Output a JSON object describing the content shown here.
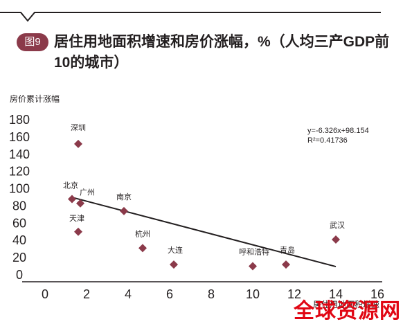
{
  "header": {
    "badge": "图9",
    "title": "居住用地面积增速和房价涨幅，%（人均三产GDP前10的城市）"
  },
  "watermark": "全球资源网",
  "chart_data": {
    "type": "scatter",
    "title": "居住用地面积增速和房价涨幅，%（人均三产GDP前10的城市）",
    "ylabel": "房价累计涨幅",
    "xlabel": "居住用地面积增速",
    "xlim": [
      0,
      16
    ],
    "ylim": [
      0,
      180
    ],
    "xticks": [
      0,
      2,
      4,
      6,
      8,
      10,
      12,
      14,
      16
    ],
    "yticks": [
      0,
      20,
      40,
      60,
      80,
      100,
      120,
      140,
      160,
      180
    ],
    "grid": false,
    "points": [
      {
        "label": "深圳",
        "x": 1.6,
        "y": 152
      },
      {
        "label": "北京",
        "x": 1.3,
        "y": 88
      },
      {
        "label": "广州",
        "x": 1.7,
        "y": 83
      },
      {
        "label": "南京",
        "x": 3.8,
        "y": 74
      },
      {
        "label": "天津",
        "x": 1.6,
        "y": 50
      },
      {
        "label": "杭州",
        "x": 4.7,
        "y": 31
      },
      {
        "label": "大连",
        "x": 6.2,
        "y": 12
      },
      {
        "label": "呼和浩特",
        "x": 10.0,
        "y": 10
      },
      {
        "label": "青岛",
        "x": 11.6,
        "y": 12
      },
      {
        "label": "武汉",
        "x": 14.0,
        "y": 41
      }
    ],
    "trendline": {
      "slope": -6.326,
      "intercept": 98.154,
      "x_start": 1.3,
      "x_end": 14.0
    },
    "equation": "y=-6.326x+98.154",
    "r2": "R²=0.41736",
    "colors": {
      "marker": "#8b3a4a",
      "text": "#231f20",
      "accent": "#8b3a4a"
    }
  }
}
